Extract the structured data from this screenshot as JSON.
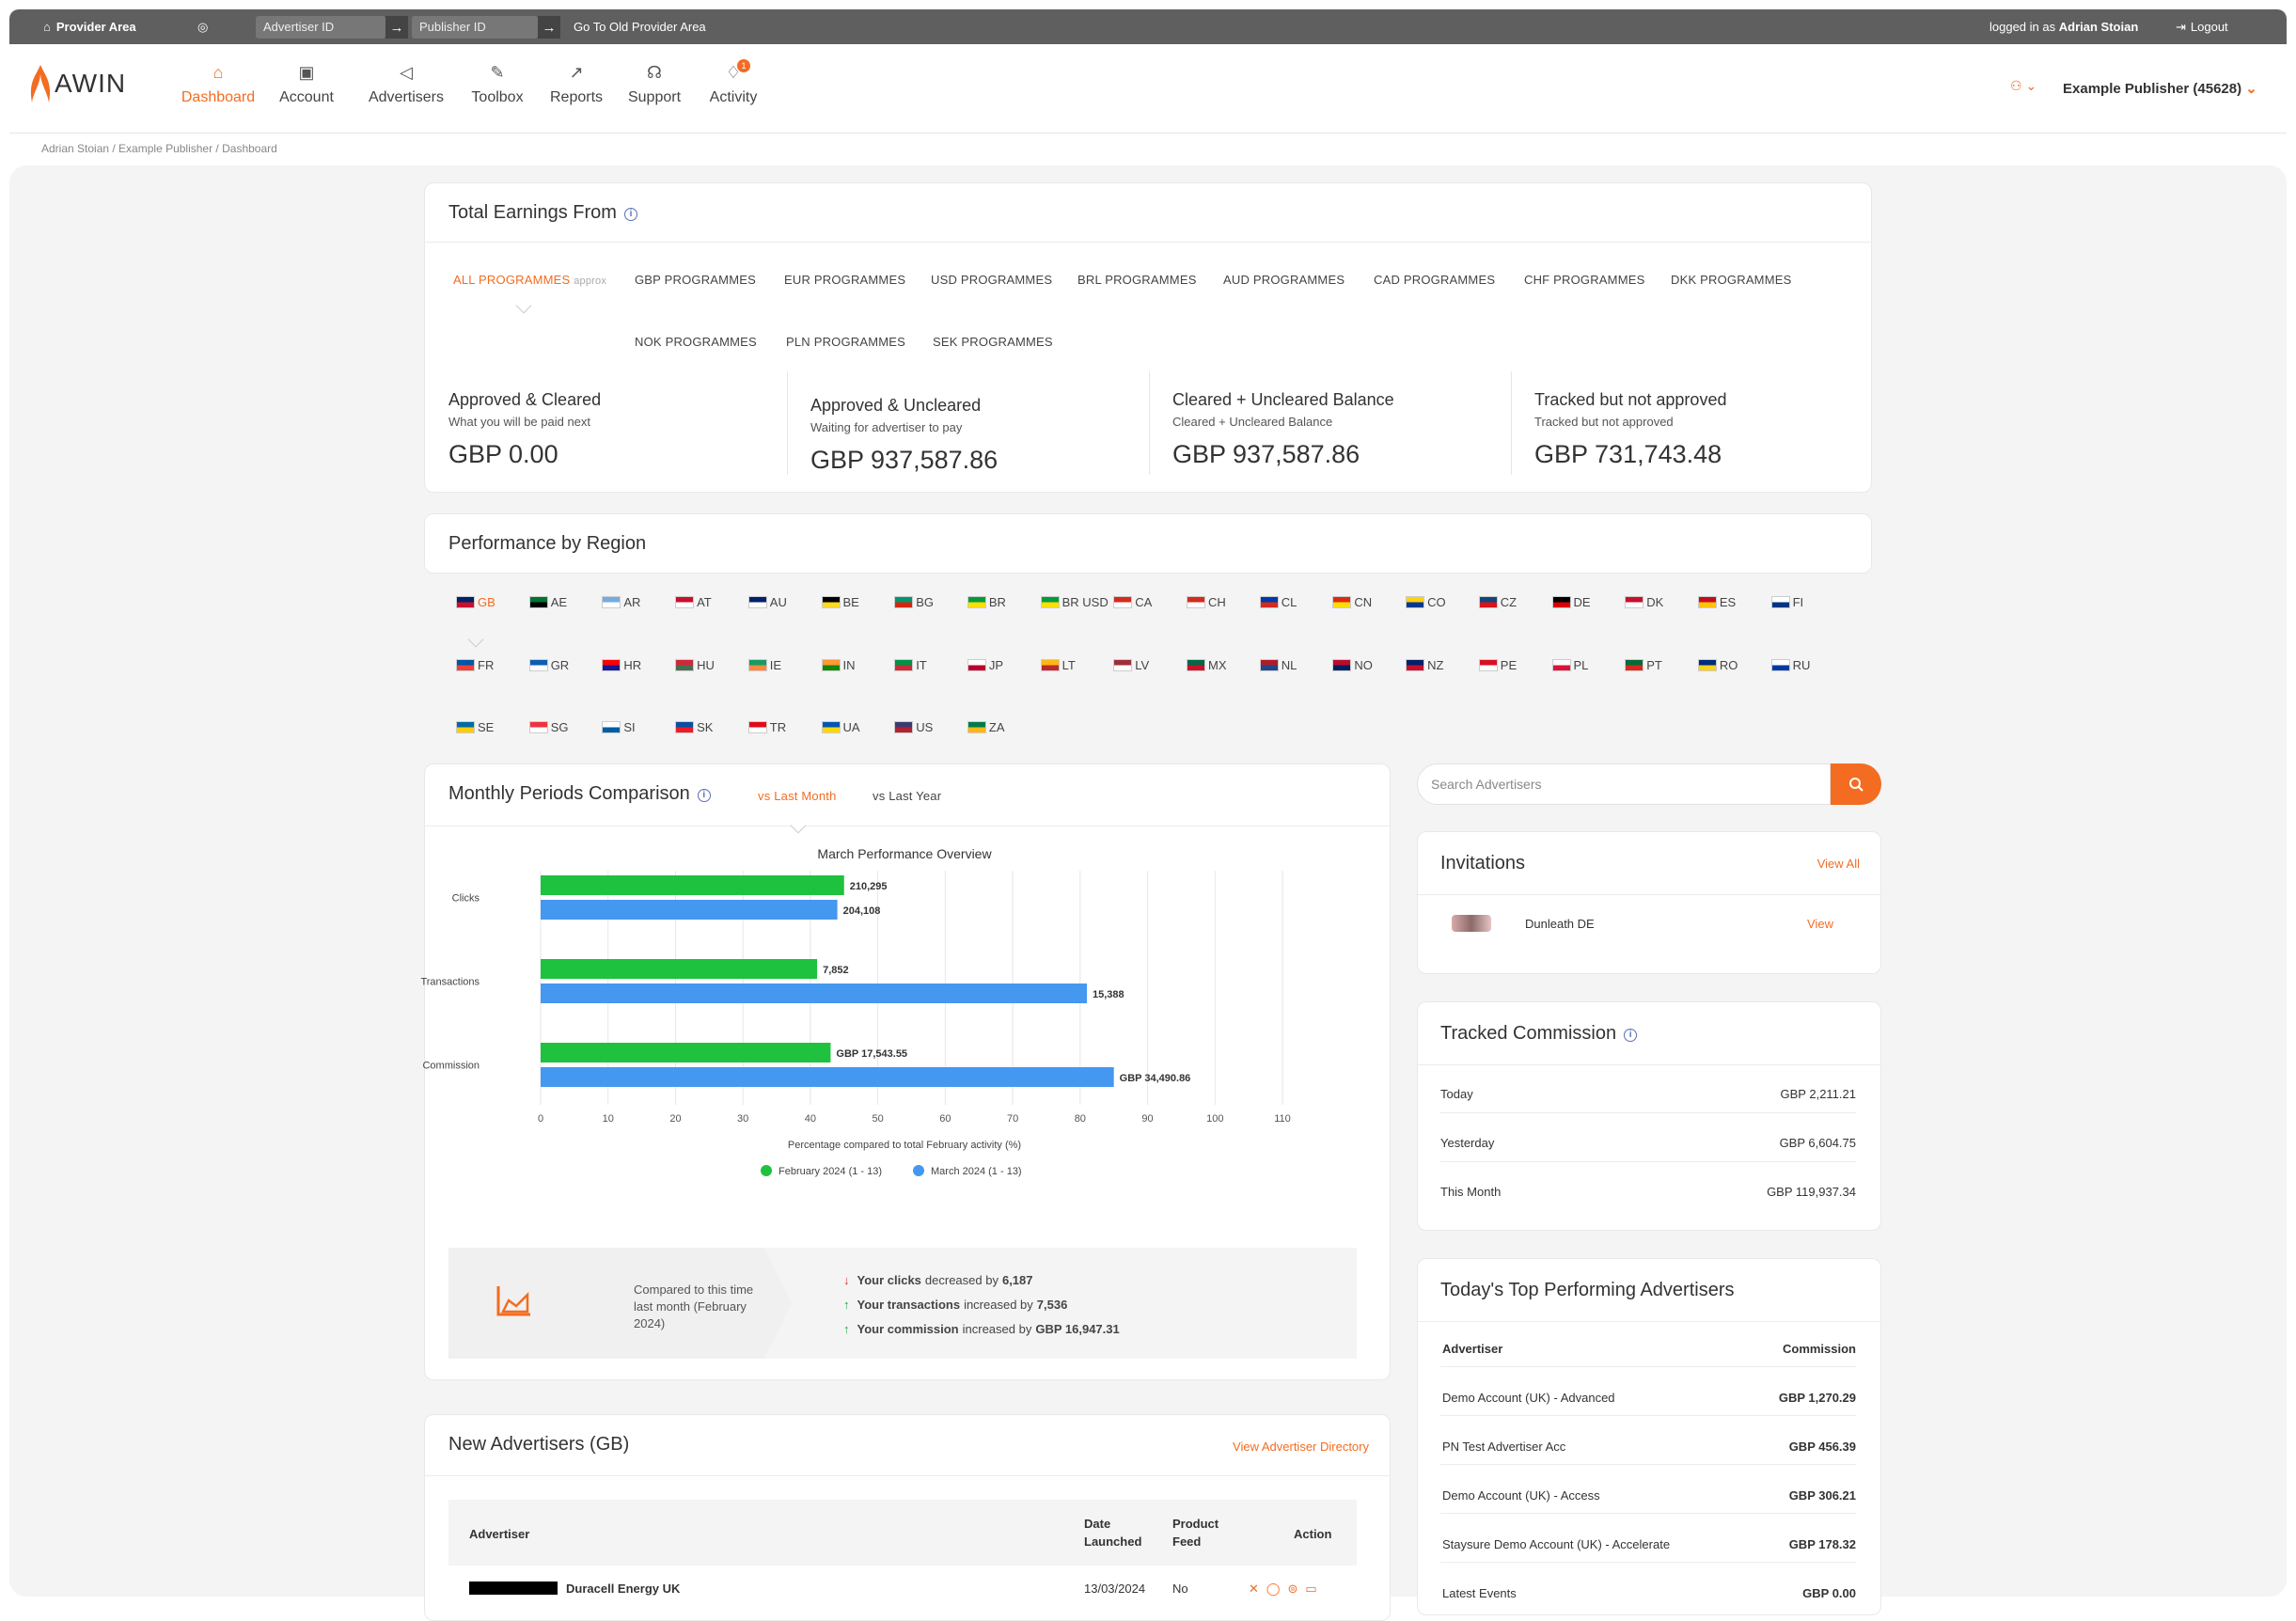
{
  "topbar": {
    "provider_area": "Provider Area",
    "advertiser_placeholder": "Advertiser ID",
    "publisher_placeholder": "Publisher ID",
    "old_area": "Go To Old Provider Area",
    "logged_prefix": "logged in as",
    "logged_user": "Adrian Stoian",
    "logout": "Logout"
  },
  "nav": {
    "logo": "AWIN",
    "items": [
      {
        "label": "Dashboard",
        "icon": "home-icon"
      },
      {
        "label": "Account",
        "icon": "id-card-icon"
      },
      {
        "label": "Advertisers",
        "icon": "megaphone-icon"
      },
      {
        "label": "Toolbox",
        "icon": "wrench-icon"
      },
      {
        "label": "Reports",
        "icon": "chart-icon"
      },
      {
        "label": "Support",
        "icon": "headset-icon"
      },
      {
        "label": "Activity",
        "icon": "bell-icon",
        "badge": "1"
      }
    ],
    "account": "Example Publisher (45628)"
  },
  "breadcrumb": "Adrian Stoian / Example Publisher / Dashboard",
  "earnings": {
    "title": "Total Earnings From",
    "tabs": [
      "ALL PROGRAMMES",
      "GBP PROGRAMMES",
      "EUR PROGRAMMES",
      "USD PROGRAMMES",
      "BRL PROGRAMMES",
      "AUD PROGRAMMES",
      "CAD PROGRAMMES",
      "CHF PROGRAMMES",
      "DKK PROGRAMMES",
      "NOK PROGRAMMES",
      "PLN PROGRAMMES",
      "SEK PROGRAMMES"
    ],
    "approx": "approx",
    "cols": [
      {
        "title": "Approved & Cleared",
        "sub": "What you will be paid next",
        "value": "GBP 0.00"
      },
      {
        "title": "Approved & Uncleared",
        "sub": "Waiting for advertiser to pay",
        "value": "GBP 937,587.86"
      },
      {
        "title": "Cleared + Uncleared Balance",
        "sub": "Cleared + Uncleared Balance",
        "value": "GBP 937,587.86"
      },
      {
        "title": "Tracked but not approved",
        "sub": "Tracked but not approved",
        "value": "GBP 731,743.48"
      }
    ]
  },
  "region": {
    "title": "Performance by Region",
    "flags": [
      "GB",
      "AE",
      "AR",
      "AT",
      "AU",
      "BE",
      "BG",
      "BR",
      "BR USD",
      "CA",
      "CH",
      "CL",
      "CN",
      "CO",
      "CZ",
      "DE",
      "DK",
      "ES",
      "FI",
      "FR",
      "GR",
      "HR",
      "HU",
      "IE",
      "IN",
      "IT",
      "JP",
      "LT",
      "LV",
      "MX",
      "NL",
      "NO",
      "NZ",
      "PE",
      "PL",
      "PT",
      "RO",
      "RU",
      "SE",
      "SG",
      "SI",
      "SK",
      "TR",
      "UA",
      "US",
      "ZA"
    ]
  },
  "monthly": {
    "title": "Monthly Periods Comparison",
    "tab_active": "vs Last Month",
    "tab_other": "vs Last Year",
    "summary_intro": "Compared to this time last month (February 2024)",
    "summary": [
      {
        "dir": "down",
        "bold": "Your clicks",
        "rest": "decreased by",
        "num": "6,187"
      },
      {
        "dir": "up",
        "bold": "Your transactions",
        "rest": "increased by",
        "num": "7,536"
      },
      {
        "dir": "up",
        "bold": "Your commission",
        "rest": "increased by",
        "num": "GBP 16,947.31"
      }
    ]
  },
  "chart_data": {
    "type": "bar",
    "title": "March Performance Overview",
    "categories": [
      "Clicks",
      "Transactions",
      "Commission"
    ],
    "xlabel": "Percentage compared to total February activity (%)",
    "xlim": [
      0,
      110
    ],
    "xticks": [
      0,
      10,
      20,
      30,
      40,
      50,
      60,
      70,
      80,
      90,
      100,
      110
    ],
    "legend_position": "bottom",
    "series": [
      {
        "name": "February 2024 (1 - 13)",
        "color": "#1ec23f",
        "values": [
          45,
          41,
          43
        ],
        "labels": [
          "210,295",
          "7,852",
          "GBP 17,543.55"
        ]
      },
      {
        "name": "March 2024 (1 - 13)",
        "color": "#4598f0",
        "values": [
          44,
          81,
          85
        ],
        "labels": [
          "204,108",
          "15,388",
          "GBP 34,490.86"
        ]
      }
    ]
  },
  "search": {
    "placeholder": "Search Advertisers"
  },
  "invitations": {
    "title": "Invitations",
    "view_all": "View All",
    "items": [
      {
        "name": "Dunleath DE",
        "action": "View"
      }
    ]
  },
  "tracked": {
    "title": "Tracked Commission",
    "rows": [
      {
        "label": "Today",
        "value": "GBP 2,211.21"
      },
      {
        "label": "Yesterday",
        "value": "GBP 6,604.75"
      },
      {
        "label": "This Month",
        "value": "GBP 119,937.34"
      }
    ]
  },
  "top": {
    "title": "Today's Top Performing Advertisers",
    "col_adv": "Advertiser",
    "col_comm": "Commission",
    "rows": [
      {
        "name": "Demo Account (UK) - Advanced",
        "value": "GBP 1,270.29"
      },
      {
        "name": "PN Test Advertiser Acc",
        "value": "GBP 456.39"
      },
      {
        "name": "Demo Account (UK) - Access",
        "value": "GBP 306.21"
      },
      {
        "name": "Staysure Demo Account (UK) - Accelerate",
        "value": "GBP 178.32"
      },
      {
        "name": "Latest Events",
        "value": "GBP 0.00"
      }
    ]
  },
  "newadv": {
    "title": "New Advertisers (GB)",
    "link": "View Advertiser Directory",
    "col_adv": "Advertiser",
    "col_date": "Date Launched",
    "col_feed": "Product Feed",
    "col_action": "Action",
    "rows": [
      {
        "name": "Duracell Energy UK",
        "date": "13/03/2024",
        "feed": "No"
      }
    ]
  }
}
